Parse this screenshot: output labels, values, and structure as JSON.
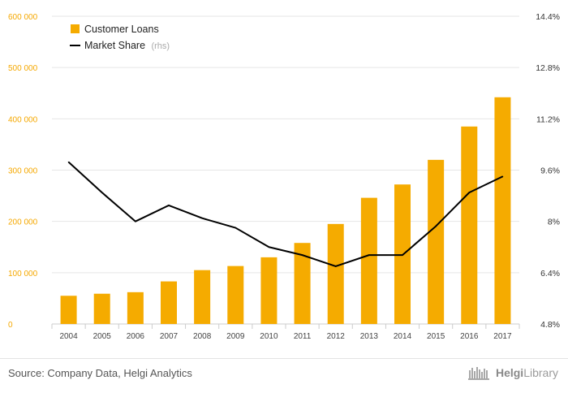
{
  "chart_data": {
    "type": "bar",
    "categories": [
      "2004",
      "2005",
      "2006",
      "2007",
      "2008",
      "2009",
      "2010",
      "2011",
      "2012",
      "2013",
      "2014",
      "2015",
      "2016",
      "2017"
    ],
    "series": [
      {
        "name": "Customer Loans",
        "kind": "bar",
        "axis": "left",
        "color": "#f5ab00",
        "values": [
          55000,
          59000,
          62000,
          83000,
          105000,
          113000,
          130000,
          158000,
          195000,
          246000,
          272000,
          320000,
          385000,
          442000
        ]
      },
      {
        "name": "Market Share",
        "name_suffix": "(rhs)",
        "kind": "line",
        "axis": "right",
        "color": "#000000",
        "values": [
          9.85,
          8.9,
          8.0,
          8.5,
          8.1,
          7.8,
          7.2,
          6.95,
          6.6,
          6.95,
          6.95,
          7.85,
          8.9,
          9.4
        ]
      }
    ],
    "y_left": {
      "lim": [
        0,
        600000
      ],
      "ticks": [
        0,
        100000,
        200000,
        300000,
        400000,
        500000,
        600000
      ],
      "tick_labels": [
        "0",
        "100 000",
        "200 000",
        "300 000",
        "400 000",
        "500 000",
        "600 000"
      ],
      "color": "#f5a800"
    },
    "y_right": {
      "lim": [
        4.8,
        14.4
      ],
      "ticks": [
        4.8,
        6.4,
        8,
        9.6,
        11.2,
        12.8,
        14.4
      ],
      "tick_labels": [
        "4.8%",
        "6.4%",
        "8%",
        "9.6%",
        "11.2%",
        "12.8%",
        "14.4%"
      ]
    },
    "grid": true,
    "legend_position": "top-left"
  },
  "footer": {
    "source": "Source: Company Data, Helgi Analytics",
    "logo_prefix": "Helgi",
    "logo_suffix": "Library"
  }
}
